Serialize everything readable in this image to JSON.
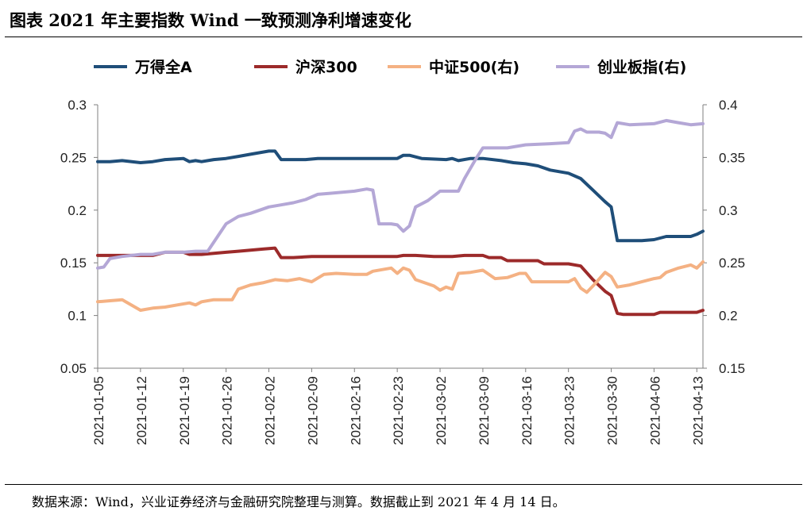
{
  "figure": {
    "title": "图表 2021 年主要指数 Wind 一致预测净利增速变化",
    "source_note": "数据来源：Wind，兴业证券经济与金融研究院整理与测算。数据截止到 2021 年 4 月 14 日。"
  },
  "chart_data": {
    "type": "line",
    "title": "",
    "xlabel": "",
    "ylabel": "",
    "ylim_left": [
      0.05,
      0.3
    ],
    "ylim_right": [
      0.15,
      0.4
    ],
    "y_ticks_left": [
      "0.05",
      "0.1",
      "0.15",
      "0.2",
      "0.25",
      "0.3"
    ],
    "y_ticks_right": [
      "0.15",
      "0.2",
      "0.25",
      "0.3",
      "0.35",
      "0.4"
    ],
    "x_tick_labels": [
      "2021-01-05",
      "2021-01-12",
      "2021-01-19",
      "2021-01-26",
      "2021-02-02",
      "2021-02-09",
      "2021-02-16",
      "2021-02-23",
      "2021-03-02",
      "2021-03-09",
      "2021-03-16",
      "2021-03-23",
      "2021-03-30",
      "2021-04-06",
      "2021-04-13"
    ],
    "x_start": "2021-01-05",
    "x_end": "2021-04-14",
    "grid": false,
    "legend_position": "top",
    "series": [
      {
        "name": "万得全A",
        "axis": "left",
        "color": "#1f4e79",
        "points": [
          [
            "2021-01-05",
            0.246
          ],
          [
            "2021-01-07",
            0.246
          ],
          [
            "2021-01-09",
            0.247
          ],
          [
            "2021-01-12",
            0.245
          ],
          [
            "2021-01-14",
            0.246
          ],
          [
            "2021-01-16",
            0.248
          ],
          [
            "2021-01-19",
            0.249
          ],
          [
            "2021-01-20",
            0.246
          ],
          [
            "2021-01-21",
            0.247
          ],
          [
            "2021-01-22",
            0.246
          ],
          [
            "2021-01-24",
            0.248
          ],
          [
            "2021-01-26",
            0.249
          ],
          [
            "2021-01-28",
            0.251
          ],
          [
            "2021-01-30",
            0.253
          ],
          [
            "2021-02-02",
            0.256
          ],
          [
            "2021-02-03",
            0.256
          ],
          [
            "2021-02-04",
            0.248
          ],
          [
            "2021-02-08",
            0.248
          ],
          [
            "2021-02-10",
            0.249
          ],
          [
            "2021-02-23",
            0.249
          ],
          [
            "2021-02-24",
            0.252
          ],
          [
            "2021-02-25",
            0.252
          ],
          [
            "2021-02-27",
            0.249
          ],
          [
            "2021-03-03",
            0.248
          ],
          [
            "2021-03-04",
            0.249
          ],
          [
            "2021-03-05",
            0.247
          ],
          [
            "2021-03-07",
            0.249
          ],
          [
            "2021-03-09",
            0.249
          ],
          [
            "2021-03-12",
            0.247
          ],
          [
            "2021-03-14",
            0.245
          ],
          [
            "2021-03-16",
            0.244
          ],
          [
            "2021-03-18",
            0.242
          ],
          [
            "2021-03-20",
            0.238
          ],
          [
            "2021-03-23",
            0.235
          ],
          [
            "2021-03-25",
            0.23
          ],
          [
            "2021-03-27",
            0.219
          ],
          [
            "2021-03-29",
            0.208
          ],
          [
            "2021-03-30",
            0.203
          ],
          [
            "2021-03-31",
            0.171
          ],
          [
            "2021-04-04",
            0.171
          ],
          [
            "2021-04-06",
            0.172
          ],
          [
            "2021-04-08",
            0.175
          ],
          [
            "2021-04-10",
            0.175
          ],
          [
            "2021-04-12",
            0.175
          ],
          [
            "2021-04-13",
            0.177
          ],
          [
            "2021-04-14",
            0.18
          ]
        ]
      },
      {
        "name": "沪深300",
        "axis": "left",
        "color": "#9c2a2a",
        "points": [
          [
            "2021-01-05",
            0.157
          ],
          [
            "2021-01-07",
            0.157
          ],
          [
            "2021-01-09",
            0.157
          ],
          [
            "2021-01-12",
            0.157
          ],
          [
            "2021-01-14",
            0.157
          ],
          [
            "2021-01-16",
            0.16
          ],
          [
            "2021-01-19",
            0.16
          ],
          [
            "2021-01-20",
            0.158
          ],
          [
            "2021-01-22",
            0.158
          ],
          [
            "2021-01-24",
            0.159
          ],
          [
            "2021-01-26",
            0.16
          ],
          [
            "2021-01-28",
            0.161
          ],
          [
            "2021-01-30",
            0.162
          ],
          [
            "2021-02-01",
            0.163
          ],
          [
            "2021-02-03",
            0.164
          ],
          [
            "2021-02-04",
            0.155
          ],
          [
            "2021-02-06",
            0.155
          ],
          [
            "2021-02-09",
            0.156
          ],
          [
            "2021-02-16",
            0.156
          ],
          [
            "2021-02-23",
            0.156
          ],
          [
            "2021-02-24",
            0.157
          ],
          [
            "2021-02-26",
            0.157
          ],
          [
            "2021-03-01",
            0.156
          ],
          [
            "2021-03-04",
            0.156
          ],
          [
            "2021-03-06",
            0.157
          ],
          [
            "2021-03-09",
            0.157
          ],
          [
            "2021-03-10",
            0.155
          ],
          [
            "2021-03-12",
            0.155
          ],
          [
            "2021-03-13",
            0.152
          ],
          [
            "2021-03-16",
            0.152
          ],
          [
            "2021-03-18",
            0.152
          ],
          [
            "2021-03-19",
            0.149
          ],
          [
            "2021-03-23",
            0.149
          ],
          [
            "2021-03-25",
            0.147
          ],
          [
            "2021-03-27",
            0.134
          ],
          [
            "2021-03-29",
            0.123
          ],
          [
            "2021-03-30",
            0.119
          ],
          [
            "2021-03-31",
            0.102
          ],
          [
            "2021-04-01",
            0.101
          ],
          [
            "2021-04-06",
            0.101
          ],
          [
            "2021-04-07",
            0.103
          ],
          [
            "2021-04-13",
            0.103
          ],
          [
            "2021-04-14",
            0.105
          ]
        ]
      },
      {
        "name": "中证500(右)",
        "axis": "right",
        "color": "#f4b183",
        "points": [
          [
            "2021-01-05",
            0.213
          ],
          [
            "2021-01-07",
            0.214
          ],
          [
            "2021-01-09",
            0.215
          ],
          [
            "2021-01-12",
            0.205
          ],
          [
            "2021-01-14",
            0.207
          ],
          [
            "2021-01-16",
            0.208
          ],
          [
            "2021-01-18",
            0.21
          ],
          [
            "2021-01-20",
            0.212
          ],
          [
            "2021-01-21",
            0.21
          ],
          [
            "2021-01-22",
            0.213
          ],
          [
            "2021-01-24",
            0.215
          ],
          [
            "2021-01-26",
            0.215
          ],
          [
            "2021-01-27",
            0.215
          ],
          [
            "2021-01-28",
            0.225
          ],
          [
            "2021-01-30",
            0.229
          ],
          [
            "2021-02-01",
            0.231
          ],
          [
            "2021-02-03",
            0.234
          ],
          [
            "2021-02-05",
            0.233
          ],
          [
            "2021-02-07",
            0.235
          ],
          [
            "2021-02-09",
            0.232
          ],
          [
            "2021-02-11",
            0.239
          ],
          [
            "2021-02-13",
            0.24
          ],
          [
            "2021-02-16",
            0.239
          ],
          [
            "2021-02-18",
            0.239
          ],
          [
            "2021-02-19",
            0.242
          ],
          [
            "2021-02-22",
            0.245
          ],
          [
            "2021-02-23",
            0.24
          ],
          [
            "2021-02-24",
            0.245
          ],
          [
            "2021-02-25",
            0.243
          ],
          [
            "2021-02-26",
            0.234
          ],
          [
            "2021-03-01",
            0.228
          ],
          [
            "2021-03-02",
            0.224
          ],
          [
            "2021-03-03",
            0.227
          ],
          [
            "2021-03-04",
            0.225
          ],
          [
            "2021-03-05",
            0.24
          ],
          [
            "2021-03-07",
            0.241
          ],
          [
            "2021-03-09",
            0.243
          ],
          [
            "2021-03-11",
            0.235
          ],
          [
            "2021-03-13",
            0.236
          ],
          [
            "2021-03-15",
            0.24
          ],
          [
            "2021-03-16",
            0.24
          ],
          [
            "2021-03-17",
            0.232
          ],
          [
            "2021-03-20",
            0.232
          ],
          [
            "2021-03-23",
            0.232
          ],
          [
            "2021-03-24",
            0.235
          ],
          [
            "2021-03-25",
            0.226
          ],
          [
            "2021-03-26",
            0.222
          ],
          [
            "2021-03-27",
            0.228
          ],
          [
            "2021-03-29",
            0.241
          ],
          [
            "2021-03-30",
            0.237
          ],
          [
            "2021-03-31",
            0.227
          ],
          [
            "2021-04-02",
            0.229
          ],
          [
            "2021-04-04",
            0.232
          ],
          [
            "2021-04-06",
            0.235
          ],
          [
            "2021-04-07",
            0.236
          ],
          [
            "2021-04-08",
            0.241
          ],
          [
            "2021-04-10",
            0.245
          ],
          [
            "2021-04-12",
            0.248
          ],
          [
            "2021-04-13",
            0.245
          ],
          [
            "2021-04-14",
            0.251
          ]
        ]
      },
      {
        "name": "创业板指(右)",
        "axis": "right",
        "color": "#b4a7d6",
        "points": [
          [
            "2021-01-05",
            0.245
          ],
          [
            "2021-01-06",
            0.246
          ],
          [
            "2021-01-07",
            0.254
          ],
          [
            "2021-01-09",
            0.256
          ],
          [
            "2021-01-12",
            0.258
          ],
          [
            "2021-01-14",
            0.258
          ],
          [
            "2021-01-16",
            0.26
          ],
          [
            "2021-01-19",
            0.26
          ],
          [
            "2021-01-21",
            0.261
          ],
          [
            "2021-01-23",
            0.261
          ],
          [
            "2021-01-26",
            0.287
          ],
          [
            "2021-01-28",
            0.294
          ],
          [
            "2021-01-30",
            0.297
          ],
          [
            "2021-02-02",
            0.303
          ],
          [
            "2021-02-04",
            0.305
          ],
          [
            "2021-02-06",
            0.307
          ],
          [
            "2021-02-08",
            0.31
          ],
          [
            "2021-02-10",
            0.315
          ],
          [
            "2021-02-12",
            0.316
          ],
          [
            "2021-02-16",
            0.318
          ],
          [
            "2021-02-18",
            0.32
          ],
          [
            "2021-02-19",
            0.319
          ],
          [
            "2021-02-20",
            0.287
          ],
          [
            "2021-02-22",
            0.287
          ],
          [
            "2021-02-23",
            0.286
          ],
          [
            "2021-02-24",
            0.28
          ],
          [
            "2021-02-25",
            0.285
          ],
          [
            "2021-02-26",
            0.303
          ],
          [
            "2021-02-28",
            0.309
          ],
          [
            "2021-03-02",
            0.318
          ],
          [
            "2021-03-03",
            0.318
          ],
          [
            "2021-03-05",
            0.318
          ],
          [
            "2021-03-06",
            0.33
          ],
          [
            "2021-03-08",
            0.35
          ],
          [
            "2021-03-09",
            0.359
          ],
          [
            "2021-03-13",
            0.359
          ],
          [
            "2021-03-16",
            0.362
          ],
          [
            "2021-03-20",
            0.363
          ],
          [
            "2021-03-23",
            0.364
          ],
          [
            "2021-03-24",
            0.375
          ],
          [
            "2021-03-25",
            0.377
          ],
          [
            "2021-03-26",
            0.374
          ],
          [
            "2021-03-28",
            0.374
          ],
          [
            "2021-03-29",
            0.373
          ],
          [
            "2021-03-30",
            0.369
          ],
          [
            "2021-03-31",
            0.383
          ],
          [
            "2021-04-02",
            0.381
          ],
          [
            "2021-04-06",
            0.382
          ],
          [
            "2021-04-08",
            0.385
          ],
          [
            "2021-04-10",
            0.383
          ],
          [
            "2021-04-12",
            0.381
          ],
          [
            "2021-04-14",
            0.382
          ]
        ]
      }
    ]
  }
}
